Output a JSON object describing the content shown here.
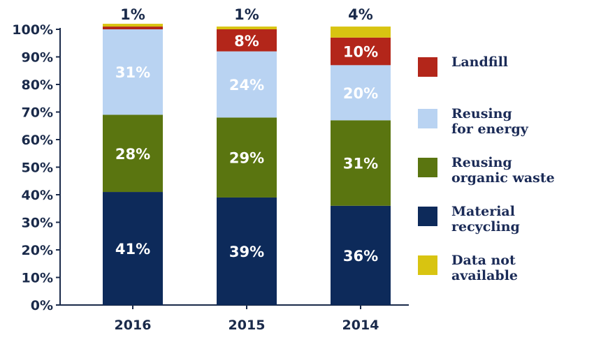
{
  "chart_data": {
    "type": "bar",
    "stacked": true,
    "categories": [
      "2016",
      "2015",
      "2014"
    ],
    "series": [
      {
        "name": "Material\nrecycling",
        "color": "#0d2a5a",
        "values": [
          41,
          39,
          36
        ]
      },
      {
        "name": "Reusing\norganic waste",
        "color": "#5a7510",
        "values": [
          28,
          29,
          31
        ]
      },
      {
        "name": "Reusing\nfor energy",
        "color": "#b9d3f2",
        "values": [
          31,
          24,
          20
        ]
      },
      {
        "name": "Landfill",
        "color": "#b3261a",
        "values": [
          1,
          8,
          10
        ]
      },
      {
        "name": "Data not\navailable",
        "color": "#d8c411",
        "values": [
          1,
          1,
          4
        ]
      }
    ],
    "segment_labels": [
      [
        "41%",
        "28%",
        "31%",
        "",
        "1%"
      ],
      [
        "39%",
        "29%",
        "24%",
        "8%",
        "1%"
      ],
      [
        "36%",
        "31%",
        "20%",
        "10%",
        "4%"
      ]
    ],
    "top_labels": [
      "1%",
      "1%",
      "4%"
    ],
    "y_ticks": [
      "0%",
      "10%",
      "20%",
      "30%",
      "40%",
      "50%",
      "60%",
      "70%",
      "80%",
      "90%",
      "100%"
    ],
    "ylim": [
      0,
      100
    ],
    "legend_order": [
      3,
      2,
      1,
      0,
      4
    ],
    "legend_position": "right",
    "grid": false
  }
}
